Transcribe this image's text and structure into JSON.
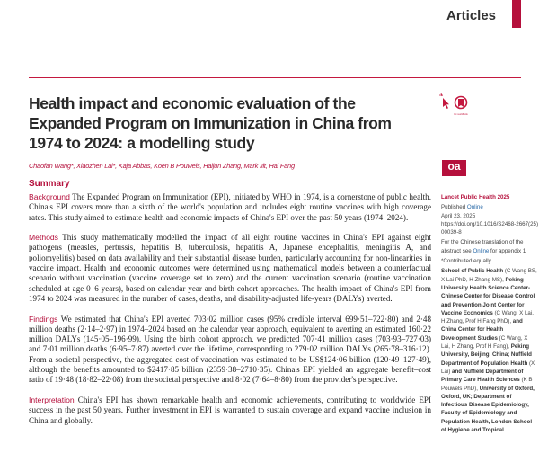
{
  "header": {
    "section": "Articles",
    "accent": "#b5103c"
  },
  "title": "Health impact and economic evaluation of the Expanded Program on Immunization in China from 1974 to 2024: a modelling study",
  "crossmark_label": "CrossMark",
  "open_access_logo": "oa",
  "authors": "Chaofan Wang*, Xiaozhen Lai*, Kaja Abbas, Koen B Pouwels, Haijun Zhang, Mark Jit, Hai Fang",
  "summary_heading": "Summary",
  "abstract": [
    {
      "label": "Background",
      "text": " The Expanded Program on Immunization (EPI), initiated by WHO in 1974, is a cornerstone of public health. China's EPI covers more than a sixth of the world's population and includes eight routine vaccines with high coverage rates. This study aimed to estimate health and economic impacts of China's EPI over the past 50 years (1974–2024)."
    },
    {
      "label": "Methods",
      "text": " This study mathematically modelled the impact of all eight routine vaccines in China's EPI against eight pathogens (measles, pertussis, hepatitis B, tuberculosis, hepatitis A, Japanese encephalitis, meningitis A, and poliomyelitis) based on data availability and their substantial disease burden, particularly accounting for non-linearities in vaccine impact. Health and economic outcomes were determined using mathematical models between a counterfactual scenario without vaccination (vaccine coverage set to zero) and the current vaccination scenario (routine vaccination scheduled at age 0–6 years), based on calendar year and birth cohort approaches. The health impact of China's EPI from 1974 to 2024 was measured in the number of cases, deaths, and disability-adjusted life-years (DALYs) averted."
    },
    {
      "label": "Findings",
      "text": " We estimated that China's EPI averted 703·02 million cases (95% credible interval 699·51–722·80) and 2·48 million deaths (2·14–2·97) in 1974–2024 based on the calendar year approach, equivalent to averting an estimated 160·22 million DALYs (145·05–196·99). Using the birth cohort approach, we predicted 707·41 million cases (703·93–727·03) and 7·01 million deaths (6·95–7·87) averted over the lifetime, corresponding to 279·02 million DALYs (265·78–316·12). From a societal perspective, the aggregated cost of vaccination was estimated to be US$124·06 billion (120·49–127·49), although the benefits amounted to $2417·85 billion (2359·38–2710·35). China's EPI yielded an aggregate benefit–cost ratio of 19·48 (18·82–22·08) from the societal perspective and 8·02 (7·64–8·80) from the provider's perspective."
    },
    {
      "label": "Interpretation",
      "text": " China's EPI has shown remarkable health and economic achievements, contributing to worldwide EPI success in the past 50 years. Further investment in EPI is warranted to sustain coverage and expand vaccine inclusion in China and globally."
    }
  ],
  "sidebar": {
    "journal": "Lancet Public Health 2025",
    "published_prefix": "Published ",
    "published_online": "Online",
    "date": "April 23, 2025",
    "doi": "https://doi.org/10.1016/S2468-2667(25)00039-8",
    "translation_pre": "For the Chinese translation of the abstract see ",
    "translation_link": "Online",
    "translation_post": " for appendix 1",
    "contributed": "*Contributed equally",
    "affiliations": "<b>School of Public Health</b> (C Wang BS, X Lai PhD, H Zhang MS), <b>Peking University Health Science Center-Chinese Center for Disease Control and Prevention Joint Center for Vaccine Economics</b> (C Wang, X Lai, H Zhang, Prof H Fang PhD), <b>and China Center for Health Development Studies</b> (C Wang, X Lai, H Zhang, Prof H Fang), <b>Peking University, Beijing, China; Nuffield Department of Population Health</b> (X Lai) <b>and Nuffield Department of Primary Care Health Sciences</b> (K B Pouwels PhD), <b>University of Oxford, Oxford, UK; Department of Infectious Disease Epidemiology, Faculty of Epidemiology and Population Health, London School of Hygiene and Tropical</b>"
  }
}
